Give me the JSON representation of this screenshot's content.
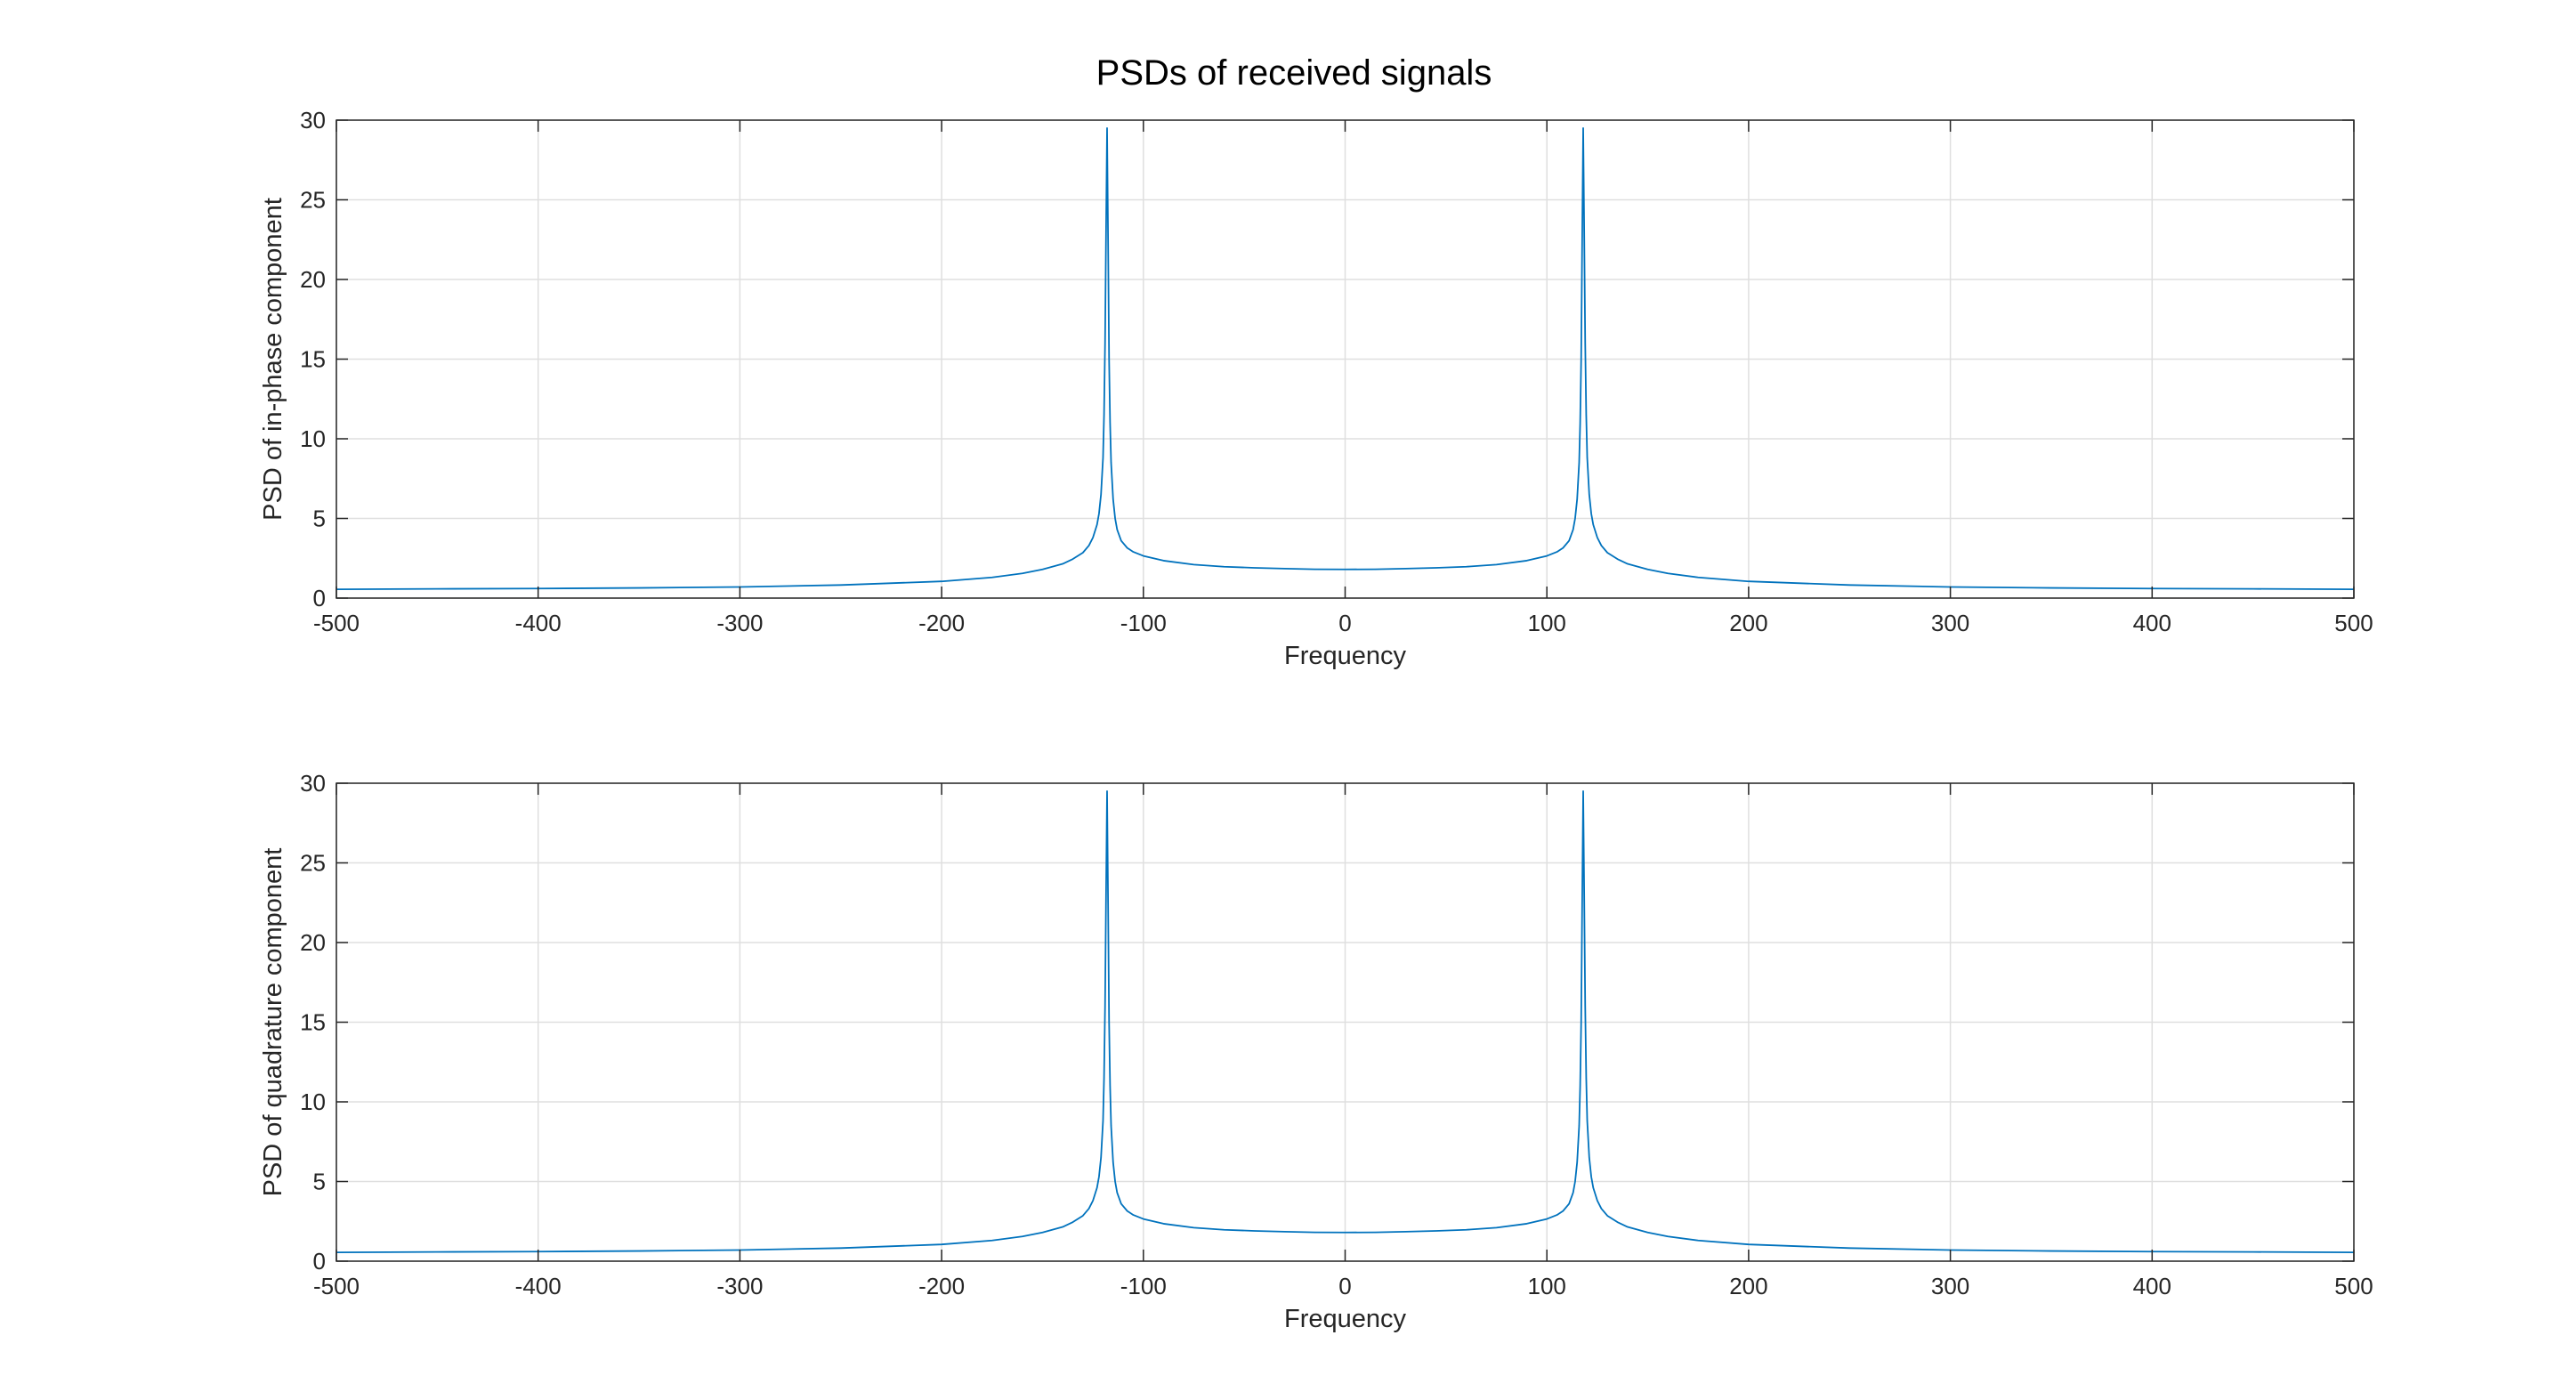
{
  "figure_title": "PSDs of received signals",
  "colors": {
    "line": "#0072BD",
    "axis": "#262626",
    "grid": "#dfdfdf",
    "background": "#ffffff"
  },
  "chart_data": [
    {
      "type": "line",
      "title": "",
      "xlabel": "Frequency",
      "ylabel": "PSD of in-phase component",
      "xlim": [
        -500,
        500
      ],
      "ylim": [
        0,
        30
      ],
      "xticks": [
        "-500",
        "-400",
        "-300",
        "-200",
        "-100",
        "0",
        "100",
        "200",
        "300",
        "400",
        "500"
      ],
      "yticks": [
        "0",
        "5",
        "10",
        "15",
        "20",
        "25",
        "30"
      ],
      "grid": true,
      "series": [
        {
          "x": [
            -500,
            -450,
            -400,
            -350,
            -300,
            -250,
            -200,
            -175,
            -160,
            -150,
            -140,
            -135,
            -130,
            -127,
            -125,
            -123,
            -122,
            -121,
            -120,
            -119.5,
            -119,
            -118.5,
            -118,
            -117.5,
            -117,
            -116.5,
            -116,
            -115,
            -114,
            -113,
            -111,
            -108,
            -105,
            -100,
            -90,
            -75,
            -60,
            -45,
            -30,
            -15,
            0,
            15,
            30,
            45,
            60,
            75,
            90,
            100,
            105,
            108,
            111,
            113,
            114,
            115,
            116,
            116.5,
            117,
            117.5,
            118,
            118.5,
            119,
            119.5,
            120,
            121,
            122,
            123,
            125,
            127,
            130,
            135,
            140,
            150,
            160,
            175,
            200,
            250,
            300,
            350,
            400,
            450,
            500
          ],
          "values": [
            0.55,
            0.58,
            0.6,
            0.64,
            0.7,
            0.82,
            1.05,
            1.3,
            1.55,
            1.8,
            2.15,
            2.45,
            2.85,
            3.3,
            3.8,
            4.6,
            5.3,
            6.5,
            8.8,
            11.5,
            16.0,
            23.0,
            29.5,
            22.5,
            15.0,
            11.0,
            8.5,
            6.2,
            5.0,
            4.3,
            3.6,
            3.15,
            2.9,
            2.65,
            2.35,
            2.1,
            1.97,
            1.9,
            1.85,
            1.81,
            1.8,
            1.81,
            1.85,
            1.9,
            1.97,
            2.1,
            2.35,
            2.65,
            2.9,
            3.15,
            3.6,
            4.3,
            5.0,
            6.2,
            8.5,
            11.0,
            15.0,
            22.5,
            29.5,
            23.0,
            16.0,
            11.5,
            8.8,
            6.5,
            5.3,
            4.6,
            3.8,
            3.3,
            2.85,
            2.45,
            2.15,
            1.8,
            1.55,
            1.3,
            1.05,
            0.82,
            0.7,
            0.64,
            0.6,
            0.58,
            0.55
          ]
        }
      ]
    },
    {
      "type": "line",
      "title": "",
      "xlabel": "Frequency",
      "ylabel": "PSD of quadrature component",
      "xlim": [
        -500,
        500
      ],
      "ylim": [
        0,
        30
      ],
      "xticks": [
        "-500",
        "-400",
        "-300",
        "-200",
        "-100",
        "0",
        "100",
        "200",
        "300",
        "400",
        "500"
      ],
      "yticks": [
        "0",
        "5",
        "10",
        "15",
        "20",
        "25",
        "30"
      ],
      "grid": true,
      "series": [
        {
          "x": [
            -500,
            -450,
            -400,
            -350,
            -300,
            -250,
            -200,
            -175,
            -160,
            -150,
            -140,
            -135,
            -130,
            -127,
            -125,
            -123,
            -122,
            -121,
            -120,
            -119.5,
            -119,
            -118.5,
            -118,
            -117.5,
            -117,
            -116.5,
            -116,
            -115,
            -114,
            -113,
            -111,
            -108,
            -105,
            -100,
            -90,
            -75,
            -60,
            -45,
            -30,
            -15,
            0,
            15,
            30,
            45,
            60,
            75,
            90,
            100,
            105,
            108,
            111,
            113,
            114,
            115,
            116,
            116.5,
            117,
            117.5,
            118,
            118.5,
            119,
            119.5,
            120,
            121,
            122,
            123,
            125,
            127,
            130,
            135,
            140,
            150,
            160,
            175,
            200,
            250,
            300,
            350,
            400,
            450,
            500
          ],
          "values": [
            0.55,
            0.58,
            0.6,
            0.64,
            0.7,
            0.82,
            1.05,
            1.3,
            1.55,
            1.8,
            2.15,
            2.45,
            2.85,
            3.3,
            3.8,
            4.6,
            5.3,
            6.5,
            8.8,
            11.5,
            16.0,
            23.0,
            29.5,
            22.5,
            15.0,
            11.0,
            8.5,
            6.2,
            5.0,
            4.3,
            3.6,
            3.15,
            2.9,
            2.65,
            2.35,
            2.1,
            1.97,
            1.9,
            1.85,
            1.81,
            1.8,
            1.81,
            1.85,
            1.9,
            1.97,
            2.1,
            2.35,
            2.65,
            2.9,
            3.15,
            3.6,
            4.3,
            5.0,
            6.2,
            8.5,
            11.0,
            15.0,
            22.5,
            29.5,
            23.0,
            16.0,
            11.5,
            8.8,
            6.5,
            5.3,
            4.6,
            3.8,
            3.3,
            2.85,
            2.45,
            2.15,
            1.8,
            1.55,
            1.3,
            1.05,
            0.82,
            0.7,
            0.64,
            0.6,
            0.58,
            0.55
          ]
        }
      ]
    }
  ]
}
